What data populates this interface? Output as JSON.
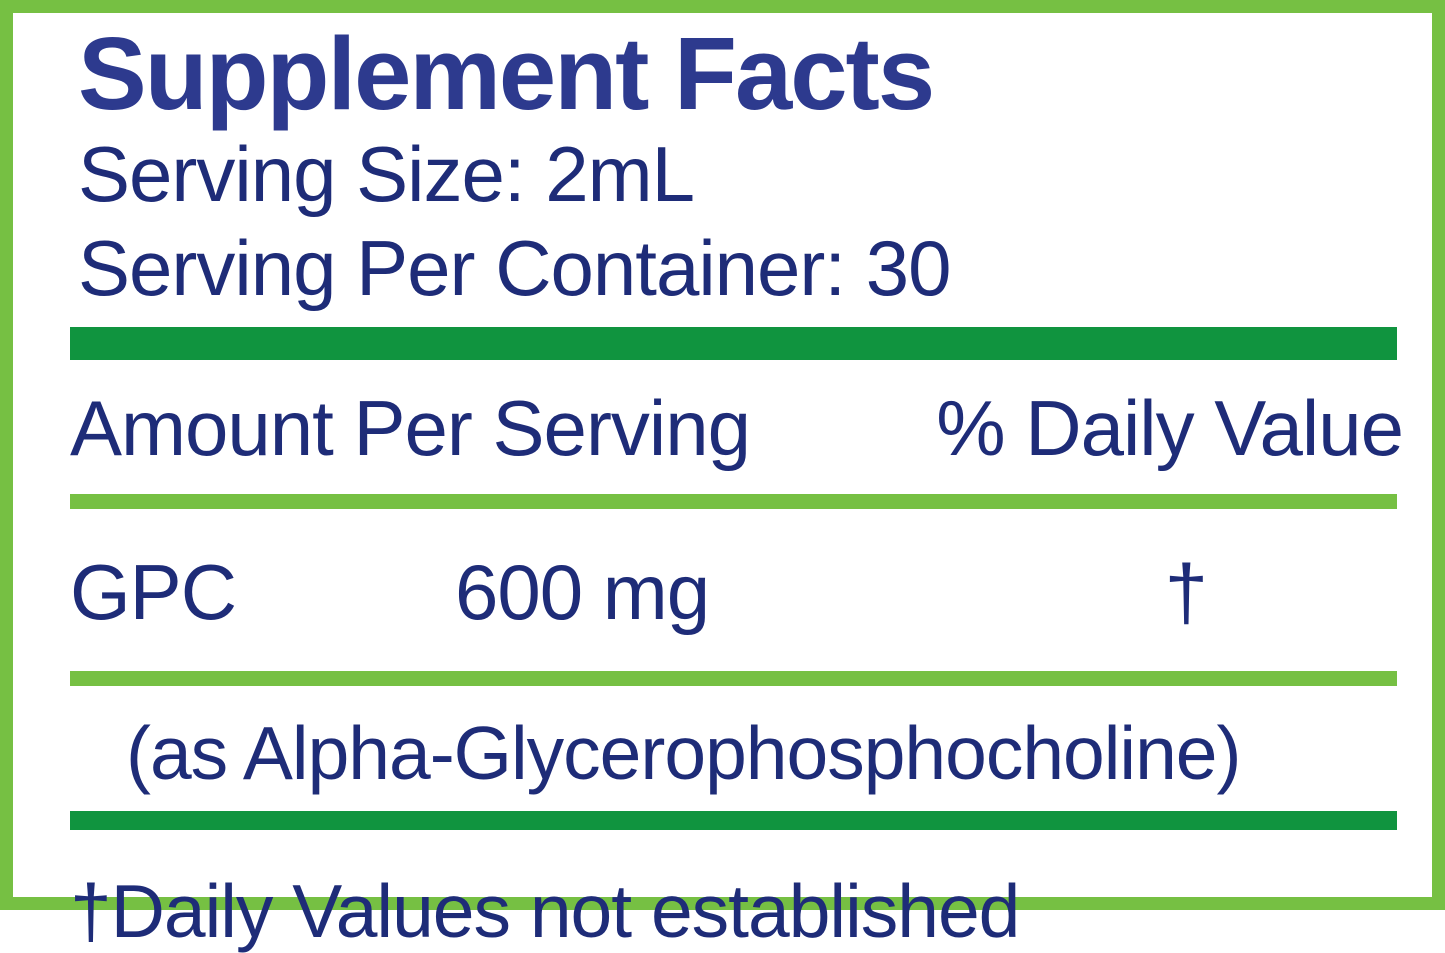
{
  "label": {
    "title": "Supplement Facts",
    "serving_size": "Serving Size: 2mL",
    "servings_per_container": "Serving Per Container: 30",
    "header": {
      "amount_per_serving": "Amount Per Serving",
      "percent_daily_value": "% Daily Value"
    },
    "ingredients": [
      {
        "name": "GPC",
        "amount": "600 mg",
        "daily_value": "†",
        "source_note": "(as Alpha-Glycerophosphocholine)"
      }
    ],
    "footnote": "†Daily Values not established",
    "colors": {
      "border_green": "#76c043",
      "bar_green": "#10943f",
      "title_navy": "#2d3a8e",
      "text_navy": "#1e2c78"
    }
  }
}
